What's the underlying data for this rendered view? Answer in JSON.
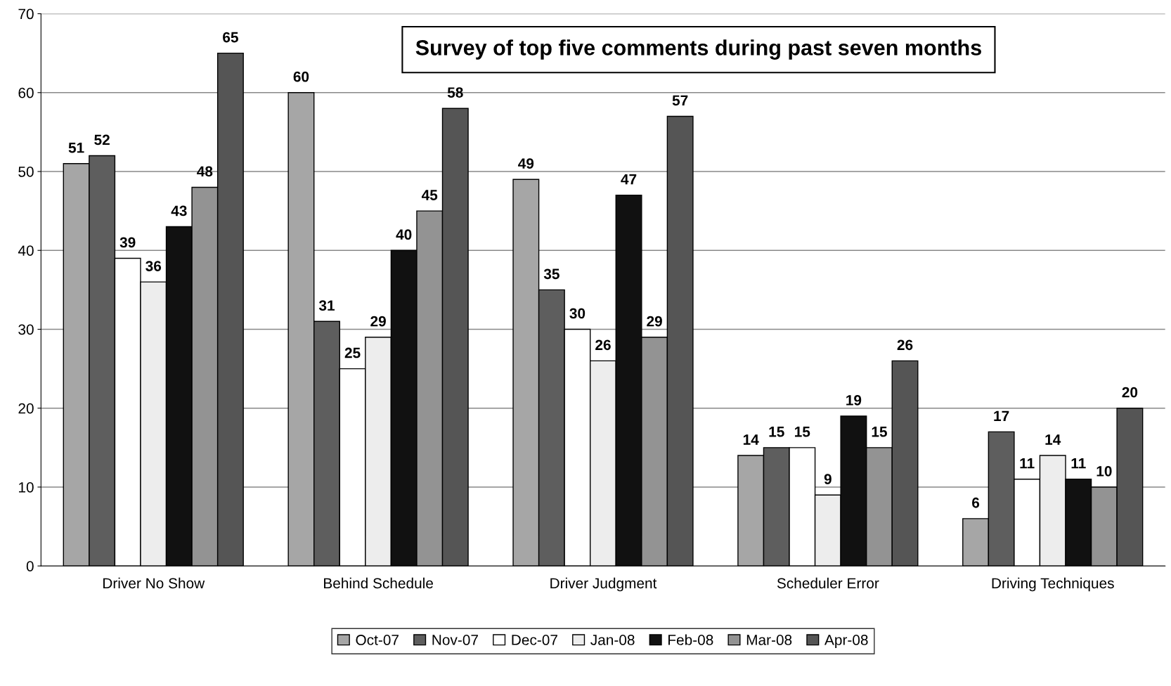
{
  "chart_data": {
    "type": "bar",
    "title": "Survey of top five comments during past seven months",
    "categories": [
      "Driver No Show",
      "Behind Schedule",
      "Driver Judgment",
      "Scheduler Error",
      "Driving Techniques"
    ],
    "series": [
      {
        "name": "Oct-07",
        "color": "#a6a6a6",
        "values": [
          51,
          60,
          49,
          14,
          6
        ]
      },
      {
        "name": "Nov-07",
        "color": "#5e5e5e",
        "values": [
          52,
          31,
          35,
          15,
          17
        ]
      },
      {
        "name": "Dec-07",
        "color": "#ffffff",
        "values": [
          39,
          25,
          30,
          15,
          11
        ]
      },
      {
        "name": "Jan-08",
        "color": "#ededed",
        "values": [
          36,
          29,
          26,
          9,
          14
        ]
      },
      {
        "name": "Feb-08",
        "color": "#111111",
        "values": [
          43,
          40,
          47,
          19,
          11
        ]
      },
      {
        "name": "Mar-08",
        "color": "#939393",
        "values": [
          48,
          45,
          29,
          15,
          10
        ]
      },
      {
        "name": "Apr-08",
        "color": "#555555",
        "values": [
          65,
          58,
          57,
          26,
          20
        ]
      }
    ],
    "ylim": [
      0,
      70
    ],
    "yticks": [
      0,
      10,
      20,
      30,
      40,
      50,
      60,
      70
    ],
    "grid": "y",
    "legend": "bottom",
    "data_labels": true
  }
}
